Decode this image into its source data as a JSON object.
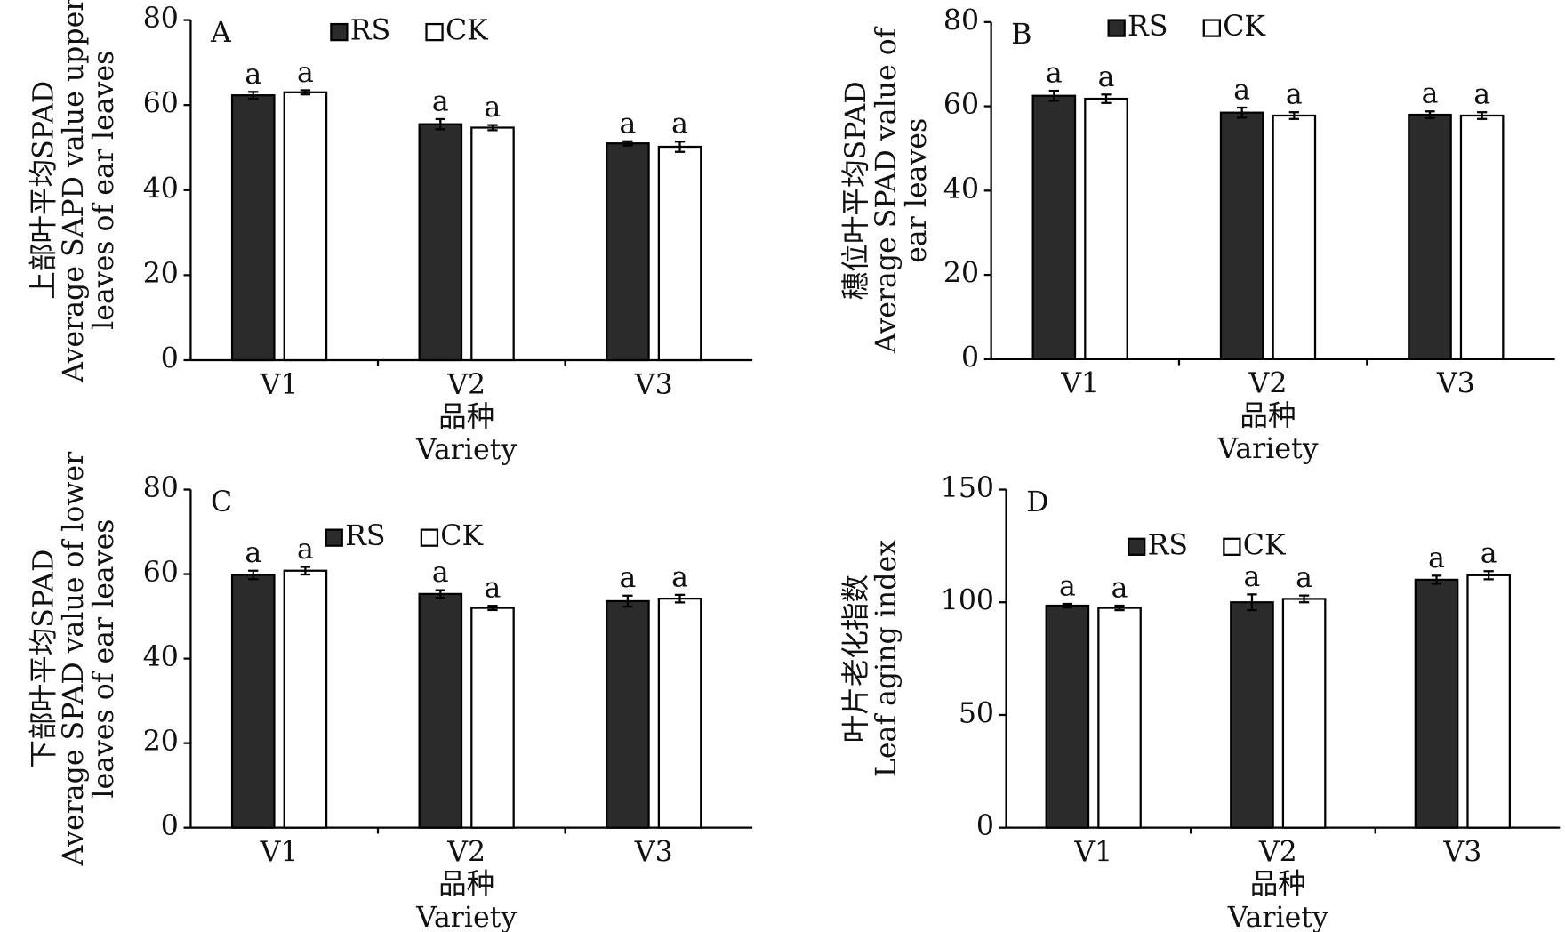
{
  "chart_data": [
    {
      "type": "bar",
      "panel": "A",
      "ylabel": [
        "上部叶平均SPAD",
        "Average SAPD value upper",
        "leaves of ear leaves"
      ],
      "xlabel": [
        "品种",
        "Variety"
      ],
      "categories": [
        "V1",
        "V2",
        "V3"
      ],
      "series": [
        {
          "name": "RS",
          "color": "#2b2b2b",
          "values": [
            62.3,
            55.5,
            51.0
          ],
          "errors": [
            0.8,
            1.2,
            0.5
          ],
          "letters": [
            "a",
            "a",
            "a"
          ]
        },
        {
          "name": "CK",
          "color": "#ffffff",
          "values": [
            63.0,
            54.7,
            50.2
          ],
          "errors": [
            0.5,
            0.6,
            1.2
          ],
          "letters": [
            "a",
            "a",
            "a"
          ]
        }
      ],
      "ylim": [
        0,
        80
      ],
      "yticks": [
        0,
        20,
        40,
        60,
        80
      ]
    },
    {
      "type": "bar",
      "panel": "B",
      "ylabel": [
        "穗位叶平均SPAD",
        "Average SPAD value of",
        "ear leaves"
      ],
      "xlabel": [
        "品种",
        "Variety"
      ],
      "categories": [
        "V1",
        "V2",
        "V3"
      ],
      "series": [
        {
          "name": "RS",
          "color": "#2b2b2b",
          "values": [
            62.5,
            58.5,
            58.0
          ],
          "errors": [
            1.2,
            1.2,
            0.8
          ],
          "letters": [
            "a",
            "a",
            "a"
          ]
        },
        {
          "name": "CK",
          "color": "#ffffff",
          "values": [
            61.8,
            57.8,
            57.8
          ],
          "errors": [
            1.0,
            0.8,
            0.8
          ],
          "letters": [
            "a",
            "a",
            "a"
          ]
        }
      ],
      "ylim": [
        0,
        80
      ],
      "yticks": [
        0,
        20,
        40,
        60,
        80
      ]
    },
    {
      "type": "bar",
      "panel": "C",
      "ylabel": [
        "下部叶平均SPAD",
        "Average SPAD value of lower",
        "leaves of ear leaves"
      ],
      "xlabel": [
        "品种",
        "Variety"
      ],
      "categories": [
        "V1",
        "V2",
        "V3"
      ],
      "series": [
        {
          "name": "RS",
          "color": "#2b2b2b",
          "values": [
            59.8,
            55.3,
            53.6
          ],
          "errors": [
            1.0,
            0.9,
            1.3
          ],
          "letters": [
            "a",
            "a",
            "a"
          ]
        },
        {
          "name": "CK",
          "color": "#ffffff",
          "values": [
            60.8,
            52.0,
            54.2
          ],
          "errors": [
            0.9,
            0.5,
            0.9
          ],
          "letters": [
            "a",
            "a",
            "a"
          ]
        }
      ],
      "ylim": [
        0,
        80
      ],
      "yticks": [
        0,
        20,
        40,
        60,
        80
      ]
    },
    {
      "type": "bar",
      "panel": "D",
      "ylabel": [
        "叶片老化指数",
        "Leaf aging index"
      ],
      "xlabel": [
        "品种",
        "Variety"
      ],
      "categories": [
        "V1",
        "V2",
        "V3"
      ],
      "series": [
        {
          "name": "RS",
          "color": "#2b2b2b",
          "values": [
            98.5,
            100.0,
            110.0
          ],
          "errors": [
            0.8,
            3.5,
            1.8
          ],
          "letters": [
            "a",
            "a",
            "a"
          ]
        },
        {
          "name": "CK",
          "color": "#ffffff",
          "values": [
            97.5,
            101.5,
            112.0
          ],
          "errors": [
            1.0,
            1.5,
            1.8
          ],
          "letters": [
            "a",
            "a",
            "a"
          ]
        }
      ],
      "ylim": [
        0,
        150
      ],
      "yticks": [
        0,
        50,
        100,
        150
      ]
    }
  ]
}
